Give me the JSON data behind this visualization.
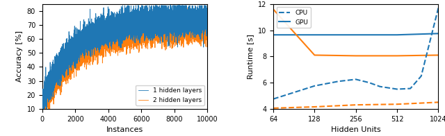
{
  "left": {
    "xlabel": "Instances",
    "ylabel": "Accuracy [%]",
    "xlim": [
      0,
      10000
    ],
    "ylim": [
      10,
      85
    ],
    "yticks": [
      10,
      20,
      30,
      40,
      50,
      60,
      70,
      80
    ],
    "xticks": [
      0,
      2000,
      4000,
      6000,
      8000,
      10000
    ],
    "legend_labels": [
      "1 hidden layers",
      "2 hidden layers"
    ],
    "line_colors": [
      "#1f77b4",
      "#ff7f0e"
    ],
    "n_points": 10000
  },
  "right": {
    "xlabel": "Hidden Units",
    "ylabel": "Runtime [s]",
    "xlim_log": [
      64,
      1024
    ],
    "ylim": [
      4,
      12
    ],
    "yticks": [
      4,
      6,
      8,
      10,
      12
    ],
    "xticks": [
      64,
      128,
      256,
      512,
      1024
    ],
    "legend_labels": [
      "CPU",
      "GPU"
    ],
    "blue_color": "#1f77b4",
    "orange_color": "#ff7f0e",
    "gpu_solid_1layer_x": [
      64,
      128,
      256,
      512,
      1024
    ],
    "gpu_solid_1layer_y": [
      9.65,
      9.65,
      9.65,
      9.65,
      9.75
    ],
    "gpu_solid_2layer_x": [
      64,
      128,
      256,
      512,
      1024
    ],
    "gpu_solid_2layer_y": [
      11.6,
      8.1,
      8.05,
      8.05,
      8.1
    ],
    "cpu_dashed_1layer_x": [
      64,
      128,
      192,
      256,
      320,
      384,
      512,
      640,
      768,
      1024
    ],
    "cpu_dashed_1layer_y": [
      4.75,
      5.75,
      6.1,
      6.25,
      6.0,
      5.7,
      5.5,
      5.55,
      6.5,
      11.7
    ],
    "cpu_dashed_2layer_x": [
      64,
      128,
      256,
      512,
      1024
    ],
    "cpu_dashed_2layer_y": [
      4.05,
      4.15,
      4.3,
      4.35,
      4.5
    ]
  }
}
